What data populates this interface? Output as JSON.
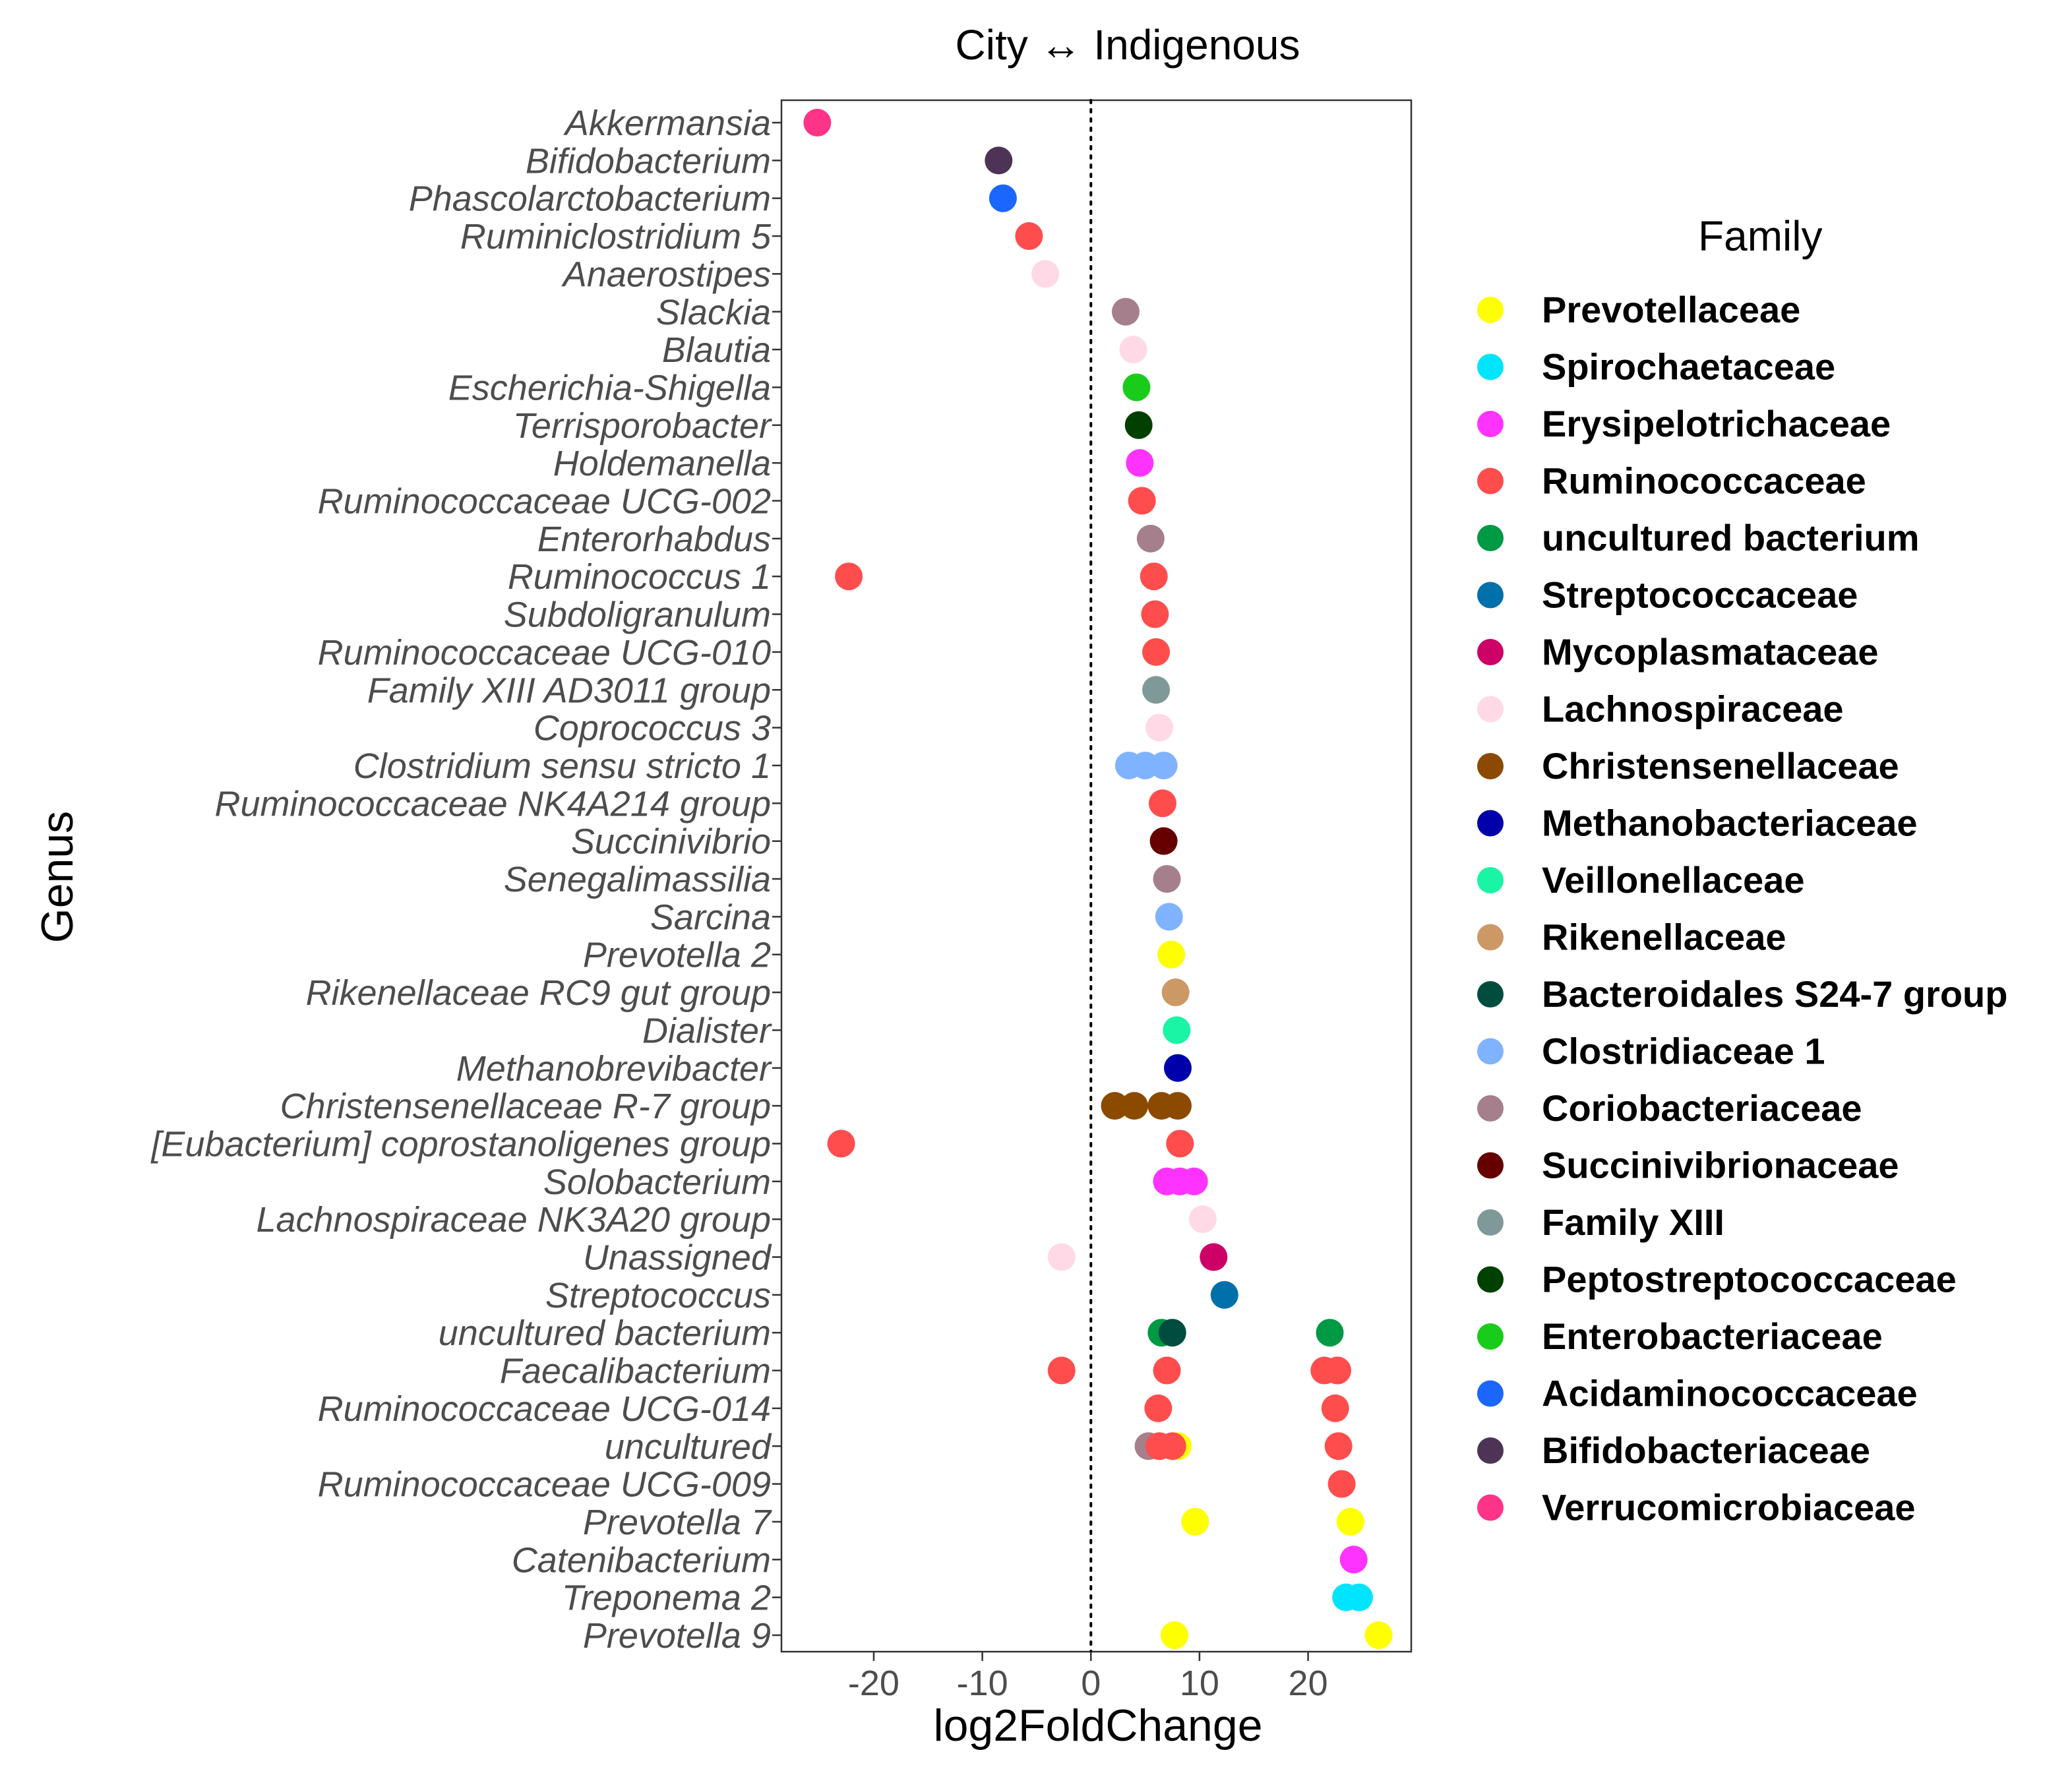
{
  "chart_data": {
    "type": "scatter",
    "title": "City ↔ Indigenous",
    "xlabel": "log2FoldChange",
    "ylabel": "Genus",
    "xlim": [
      -28.5,
      29.5
    ],
    "xticks": [
      -20,
      -10,
      0,
      10,
      20
    ],
    "xtick_labels": [
      "-20",
      "-10",
      "0",
      "10",
      "20"
    ],
    "reference_line": 0,
    "grid": false,
    "legend": {
      "title": "Family",
      "position": "right",
      "entries": [
        {
          "name": "Prevotellaceae",
          "color": "#ffff00"
        },
        {
          "name": "Spirochaetaceae",
          "color": "#00e5ff"
        },
        {
          "name": "Erysipelotrichaceae",
          "color": "#ff33ff"
        },
        {
          "name": "Ruminococcaceae",
          "color": "#ff4d4d"
        },
        {
          "name": "uncultured bacterium",
          "color": "#009944"
        },
        {
          "name": "Streptococcaceae",
          "color": "#0070aa"
        },
        {
          "name": "Mycoplasmataceae",
          "color": "#cc0066"
        },
        {
          "name": "Lachnospiraceae",
          "color": "#ffd9e6"
        },
        {
          "name": "Christensenellaceae",
          "color": "#8b4a00"
        },
        {
          "name": "Methanobacteriaceae",
          "color": "#0000aa"
        },
        {
          "name": "Veillonellaceae",
          "color": "#19f5a5"
        },
        {
          "name": "Rikenellaceae",
          "color": "#cc9966"
        },
        {
          "name": "Bacteroidales S24-7 group",
          "color": "#004d40"
        },
        {
          "name": "Clostridiaceae 1",
          "color": "#80b3ff"
        },
        {
          "name": "Coriobacteriaceae",
          "color": "#a67f8c"
        },
        {
          "name": "Succinivibrionaceae",
          "color": "#660000"
        },
        {
          "name": "Family XIII",
          "color": "#7f9999"
        },
        {
          "name": "Peptostreptococcaceae",
          "color": "#004000"
        },
        {
          "name": "Enterobacteriaceae",
          "color": "#19cc19"
        },
        {
          "name": "Acidaminococcaceae",
          "color": "#1a66ff"
        },
        {
          "name": "Bifidobacteriaceae",
          "color": "#4d3355"
        },
        {
          "name": "Verrucomicrobiaceae",
          "color": "#ff3388"
        }
      ]
    },
    "categories": [
      "Akkermansia",
      "Bifidobacterium",
      "Phascolarctobacterium",
      "Ruminiclostridium 5",
      "Anaerostipes",
      "Slackia",
      "Blautia",
      "Escherichia-Shigella",
      "Terrisporobacter",
      "Holdemanella",
      "Ruminococcaceae UCG-002",
      "Enterorhabdus",
      "Ruminococcus 1",
      "Subdoligranulum",
      "Ruminococcaceae UCG-010",
      "Family XIII AD3011 group",
      "Coprococcus 3",
      "Clostridium sensu stricto 1",
      "Ruminococcaceae NK4A214 group",
      "Succinivibrio",
      "Senegalimassilia",
      "Sarcina",
      "Prevotella 2",
      "Rikenellaceae RC9 gut group",
      "Dialister",
      "Methanobrevibacter",
      "Christensenellaceae R-7 group",
      "[Eubacterium] coprostanoligenes group",
      "Solobacterium",
      "Lachnospiraceae NK3A20 group",
      "Unassigned",
      "Streptococcus",
      "uncultured bacterium",
      "Faecalibacterium",
      "Ruminococcaceae UCG-014",
      "uncultured",
      "Ruminococcaceae UCG-009",
      "Prevotella 7",
      "Catenibacterium",
      "Treponema 2",
      "Prevotella 9"
    ],
    "points": [
      {
        "genus": "Akkermansia",
        "family": "Verrucomicrobiaceae",
        "x": -25.2
      },
      {
        "genus": "Bifidobacterium",
        "family": "Bifidobacteriaceae",
        "x": -8.5
      },
      {
        "genus": "Phascolarctobacterium",
        "family": "Acidaminococcaceae",
        "x": -8.1
      },
      {
        "genus": "Ruminiclostridium 5",
        "family": "Ruminococcaceae",
        "x": -5.7
      },
      {
        "genus": "Anaerostipes",
        "family": "Lachnospiraceae",
        "x": -4.2
      },
      {
        "genus": "Slackia",
        "family": "Coriobacteriaceae",
        "x": 3.2
      },
      {
        "genus": "Blautia",
        "family": "Lachnospiraceae",
        "x": 3.9
      },
      {
        "genus": "Escherichia-Shigella",
        "family": "Enterobacteriaceae",
        "x": 4.2
      },
      {
        "genus": "Terrisporobacter",
        "family": "Peptostreptococcaceae",
        "x": 4.4
      },
      {
        "genus": "Holdemanella",
        "family": "Erysipelotrichaceae",
        "x": 4.5
      },
      {
        "genus": "Ruminococcaceae UCG-002",
        "family": "Ruminococcaceae",
        "x": 4.7
      },
      {
        "genus": "Enterorhabdus",
        "family": "Coriobacteriaceae",
        "x": 5.5
      },
      {
        "genus": "Ruminococcus 1",
        "family": "Ruminococcaceae",
        "x": -22.3
      },
      {
        "genus": "Ruminococcus 1",
        "family": "Ruminococcaceae",
        "x": 5.8
      },
      {
        "genus": "Subdoligranulum",
        "family": "Ruminococcaceae",
        "x": 5.9
      },
      {
        "genus": "Ruminococcaceae UCG-010",
        "family": "Ruminococcaceae",
        "x": 6.0
      },
      {
        "genus": "Family XIII AD3011 group",
        "family": "Family XIII",
        "x": 6.0
      },
      {
        "genus": "Coprococcus 3",
        "family": "Lachnospiraceae",
        "x": 6.3
      },
      {
        "genus": "Clostridium sensu stricto 1",
        "family": "Clostridiaceae 1",
        "x": 3.5
      },
      {
        "genus": "Clostridium sensu stricto 1",
        "family": "Clostridiaceae 1",
        "x": 5.0
      },
      {
        "genus": "Clostridium sensu stricto 1",
        "family": "Clostridiaceae 1",
        "x": 6.7
      },
      {
        "genus": "Ruminococcaceae NK4A214 group",
        "family": "Ruminococcaceae",
        "x": 6.6
      },
      {
        "genus": "Succinivibrio",
        "family": "Succinivibrionaceae",
        "x": 6.7
      },
      {
        "genus": "Senegalimassilia",
        "family": "Coriobacteriaceae",
        "x": 7.0
      },
      {
        "genus": "Sarcina",
        "family": "Clostridiaceae 1",
        "x": 7.2
      },
      {
        "genus": "Prevotella 2",
        "family": "Prevotellaceae",
        "x": 7.4
      },
      {
        "genus": "Rikenellaceae RC9 gut group",
        "family": "Rikenellaceae",
        "x": 7.8
      },
      {
        "genus": "Dialister",
        "family": "Veillonellaceae",
        "x": 7.9
      },
      {
        "genus": "Methanobrevibacter",
        "family": "Methanobacteriaceae",
        "x": 8.0
      },
      {
        "genus": "Christensenellaceae R-7 group",
        "family": "Christensenellaceae",
        "x": 2.2
      },
      {
        "genus": "Christensenellaceae R-7 group",
        "family": "Christensenellaceae",
        "x": 4.0
      },
      {
        "genus": "Christensenellaceae R-7 group",
        "family": "Christensenellaceae",
        "x": 6.5
      },
      {
        "genus": "Christensenellaceae R-7 group",
        "family": "Christensenellaceae",
        "x": 8.0
      },
      {
        "genus": "[Eubacterium] coprostanoligenes group",
        "family": "Ruminococcaceae",
        "x": -23.0
      },
      {
        "genus": "[Eubacterium] coprostanoligenes group",
        "family": "Ruminococcaceae",
        "x": 8.2
      },
      {
        "genus": "Solobacterium",
        "family": "Erysipelotrichaceae",
        "x": 7.0
      },
      {
        "genus": "Solobacterium",
        "family": "Erysipelotrichaceae",
        "x": 8.2
      },
      {
        "genus": "Solobacterium",
        "family": "Erysipelotrichaceae",
        "x": 9.5
      },
      {
        "genus": "Lachnospiraceae NK3A20 group",
        "family": "Lachnospiraceae",
        "x": 10.3
      },
      {
        "genus": "Unassigned",
        "family": "Lachnospiraceae",
        "x": -2.7
      },
      {
        "genus": "Unassigned",
        "family": "Mycoplasmataceae",
        "x": 11.3
      },
      {
        "genus": "Streptococcus",
        "family": "Streptococcaceae",
        "x": 12.3
      },
      {
        "genus": "uncultured bacterium",
        "family": "uncultured bacterium",
        "x": 6.5
      },
      {
        "genus": "uncultured bacterium",
        "family": "Bacteroidales S24-7 group",
        "x": 7.5
      },
      {
        "genus": "uncultured bacterium",
        "family": "uncultured bacterium",
        "x": 22.0
      },
      {
        "genus": "Faecalibacterium",
        "family": "Ruminococcaceae",
        "x": -2.7
      },
      {
        "genus": "Faecalibacterium",
        "family": "Ruminococcaceae",
        "x": 7.0
      },
      {
        "genus": "Faecalibacterium",
        "family": "Ruminococcaceae",
        "x": 21.5
      },
      {
        "genus": "Faecalibacterium",
        "family": "Ruminococcaceae",
        "x": 22.7
      },
      {
        "genus": "Ruminococcaceae UCG-014",
        "family": "Ruminococcaceae",
        "x": 6.2
      },
      {
        "genus": "Ruminococcaceae UCG-014",
        "family": "Ruminococcaceae",
        "x": 22.5
      },
      {
        "genus": "uncultured",
        "family": "Coriobacteriaceae",
        "x": 5.3
      },
      {
        "genus": "uncultured",
        "family": "Prevotellaceae",
        "x": 8.0
      },
      {
        "genus": "uncultured",
        "family": "Ruminococcaceae",
        "x": 6.3
      },
      {
        "genus": "uncultured",
        "family": "Ruminococcaceae",
        "x": 7.5
      },
      {
        "genus": "uncultured",
        "family": "Ruminococcaceae",
        "x": 22.8
      },
      {
        "genus": "Ruminococcaceae UCG-009",
        "family": "Ruminococcaceae",
        "x": 23.1
      },
      {
        "genus": "Prevotella 7",
        "family": "Prevotellaceae",
        "x": 9.6
      },
      {
        "genus": "Prevotella 7",
        "family": "Prevotellaceae",
        "x": 23.9
      },
      {
        "genus": "Catenibacterium",
        "family": "Erysipelotrichaceae",
        "x": 24.2
      },
      {
        "genus": "Treponema 2",
        "family": "Spirochaetaceae",
        "x": 23.5
      },
      {
        "genus": "Treponema 2",
        "family": "Spirochaetaceae",
        "x": 24.7
      },
      {
        "genus": "Prevotella 9",
        "family": "Prevotellaceae",
        "x": 7.7
      },
      {
        "genus": "Prevotella 9",
        "family": "Prevotellaceae",
        "x": 26.5
      }
    ]
  }
}
